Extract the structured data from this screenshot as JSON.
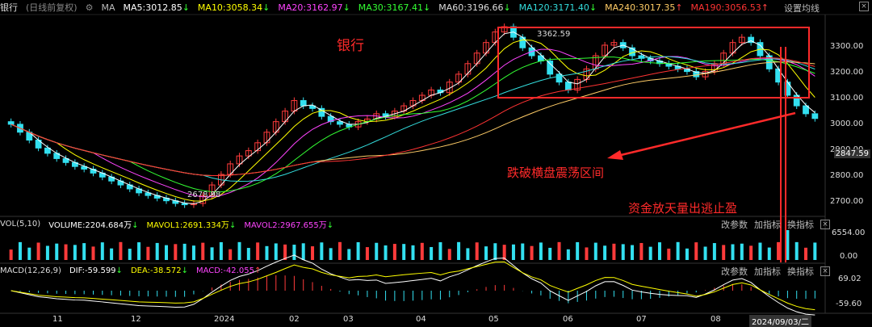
{
  "header": {
    "name": "银行",
    "mode": "(日线前复权)",
    "ma_label": "MA",
    "ma_items": [
      {
        "text": "MA5:3012.85",
        "arrow": "↓",
        "color": "#ffffff"
      },
      {
        "text": "MA10:3058.34",
        "arrow": "↓",
        "color": "#ffff00"
      },
      {
        "text": "MA20:3162.97",
        "arrow": "↓",
        "color": "#ff44ff"
      },
      {
        "text": "MA30:3167.41",
        "arrow": "↓",
        "color": "#33ff33"
      },
      {
        "text": "MA60:3196.66",
        "arrow": "↓",
        "color": "#dddddd"
      },
      {
        "text": "MA120:3171.40",
        "arrow": "↓",
        "color": "#33dddd"
      },
      {
        "text": "MA240:3017.35",
        "arrow": "↑",
        "color": "#ffcc66"
      },
      {
        "text": "MA190:3056.53",
        "arrow": "↑",
        "color": "#ff3333"
      }
    ],
    "settings_label": "设置均线"
  },
  "annotations": {
    "sector_label": "银行",
    "peak_label": "3362.59",
    "trough_label": "2678.98",
    "box_text": "跌破横盘震荡区间",
    "volume_text": "资金放天量出逃止盈"
  },
  "price_axis": {
    "ticks": [
      "3300.00",
      "3200.00",
      "3100.00",
      "3000.00",
      "2900.00",
      "2800.00",
      "2700.00"
    ],
    "current_tag": "2847.59"
  },
  "volume_panel": {
    "title": "VOL(5,10)",
    "volume": "VOLUME:2204.684万",
    "volume_arrow": "↓",
    "mavol1": "MAVOL1:2691.334万",
    "mavol1_arrow": "↓",
    "mavol2": "MAVOL2:2967.655万",
    "mavol2_arrow": "↓",
    "buttons": [
      "改参数",
      "加指标",
      "换指标"
    ],
    "close": "×",
    "ticks": [
      "6554.00",
      "0.00"
    ]
  },
  "macd_panel": {
    "title": "MACD(12,26,9)",
    "dif": "DIF:-59.599",
    "dif_arrow": "↓",
    "dea": "DEA:-38.572",
    "dea_arrow": "↓",
    "macd": "MACD:-42.055",
    "macd_arrow": "↑",
    "buttons": [
      "改参数",
      "加指标",
      "换指标"
    ],
    "close": "×",
    "ticks": [
      "69.02",
      "-59.60"
    ]
  },
  "time_axis": {
    "labels": [
      "11",
      "12",
      "2024",
      "02",
      "03",
      "04",
      "05",
      "06",
      "07",
      "08"
    ],
    "cursor_date": "2024/09/03/二"
  },
  "colors": {
    "up": "#ff3b3b",
    "down": "#33e0f0",
    "annotation": "#ff2a2a",
    "volume_bar": "#33e0f0"
  },
  "chart_data": {
    "type": "candlestick",
    "title": "银行",
    "ylim": [
      2650,
      3400
    ],
    "x_range": [
      "2023-10",
      "2024-09-03"
    ],
    "key_points": [
      {
        "label": "peak",
        "value": 3362.59,
        "date": "2024-05"
      },
      {
        "label": "trough",
        "value": 2678.98,
        "date": "2024-01"
      }
    ],
    "close_series": [
      2990,
      2960,
      2930,
      2900,
      2880,
      2860,
      2845,
      2830,
      2820,
      2805,
      2790,
      2775,
      2760,
      2745,
      2730,
      2720,
      2710,
      2700,
      2690,
      2685,
      2690,
      2720,
      2760,
      2800,
      2840,
      2870,
      2890,
      2920,
      2960,
      3000,
      3040,
      3080,
      3060,
      3050,
      3020,
      3000,
      2990,
      2980,
      3000,
      3010,
      3030,
      3020,
      3040,
      3060,
      3080,
      3100,
      3120,
      3110,
      3150,
      3180,
      3220,
      3260,
      3300,
      3340,
      3360,
      3320,
      3280,
      3250,
      3230,
      3180,
      3150,
      3120,
      3160,
      3200,
      3250,
      3290,
      3300,
      3280,
      3250,
      3240,
      3230,
      3220,
      3210,
      3200,
      3190,
      3170,
      3190,
      3220,
      3260,
      3300,
      3320,
      3300,
      3250,
      3200,
      3150,
      3100,
      3060,
      3030,
      3012
    ],
    "volume_marker": {
      "label": "6554.00",
      "note": "spike near 2024-09"
    },
    "macd_range": [
      -59.6,
      69.02
    ]
  }
}
